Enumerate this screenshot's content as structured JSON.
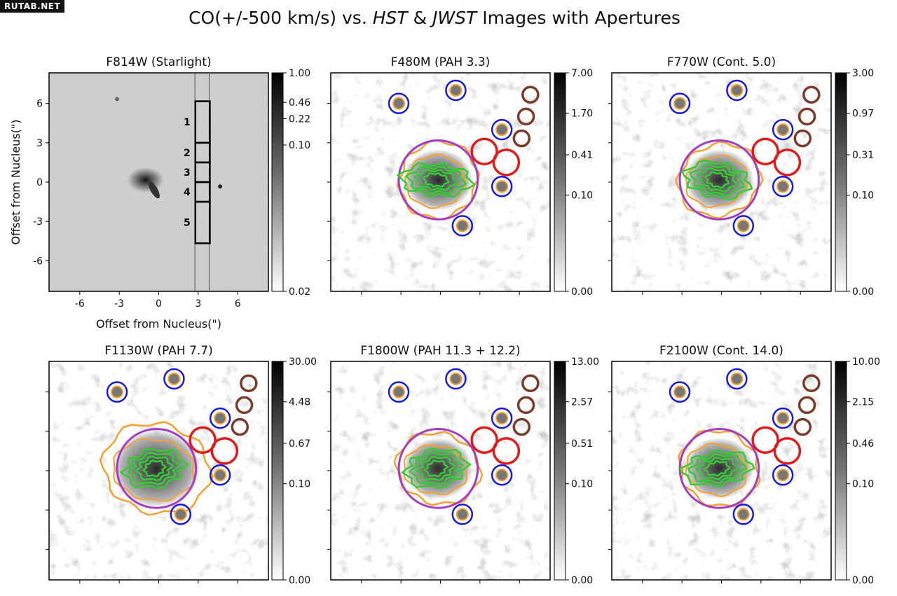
{
  "watermark": "RUTAB.NET",
  "title": {
    "pre": "CO(+/-500 km/s) vs. ",
    "hst": "HST",
    "amp": " & ",
    "jwst": "JWST",
    "post": " Images with Apertures"
  },
  "xlabel": "Offset from Nucleus(\")",
  "ylabel": "Offset from Nucleus(\")",
  "axis_ticks": [
    "-6",
    "-3",
    "0",
    "3",
    "6"
  ],
  "colors": {
    "blue_circle": "#1a1adb",
    "red_circle": "#e01b1b",
    "brown_circle": "#7a3b2a",
    "purple_circle": "#a43cc8",
    "co_contour": "#33cc33",
    "pah_contour": "#f5a030"
  },
  "panels": [
    {
      "title": "F814W (Starlight)",
      "cbar": [
        "1.00",
        "0.46",
        "0.22",
        "0.10",
        "0.02"
      ],
      "slit_labels": [
        "1",
        "2",
        "3",
        "4",
        "5"
      ]
    },
    {
      "title": "F480M (PAH 3.3)",
      "cbar": [
        "7.00",
        "1.70",
        "0.41",
        "0.10",
        "0.00"
      ]
    },
    {
      "title": "F770W (Cont. 5.0)",
      "cbar": [
        "3.00",
        "0.97",
        "0.31",
        "0.10",
        "0.00"
      ]
    },
    {
      "title": "F1130W (PAH 7.7)",
      "cbar": [
        "30.00",
        "4.48",
        "0.67",
        "0.10",
        "0.00"
      ]
    },
    {
      "title": "F1800W (PAH 11.3 + 12.2)",
      "cbar": [
        "13.00",
        "2.57",
        "0.51",
        "0.10",
        "0.00"
      ]
    },
    {
      "title": "F2100W (Cont. 14.0)",
      "cbar": [
        "10.00",
        "2.15",
        "0.46",
        "0.10",
        "0.00"
      ]
    }
  ]
}
